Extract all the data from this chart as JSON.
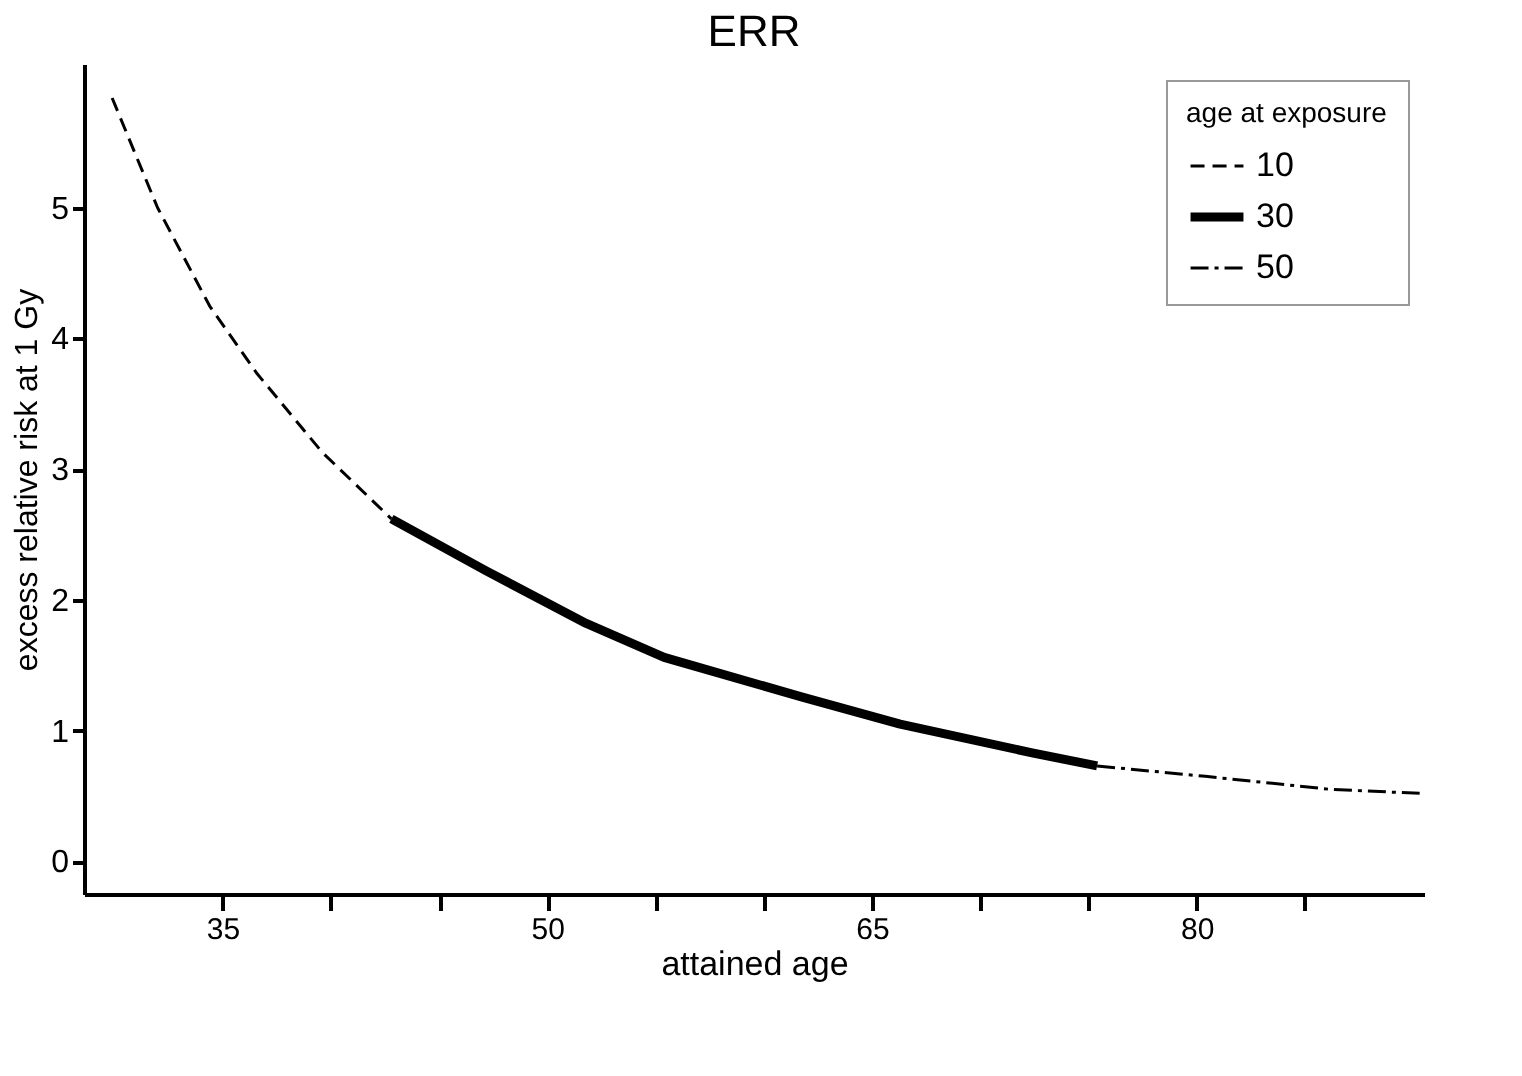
{
  "chart_data": {
    "type": "line",
    "title": "ERR",
    "xlabel": "attained age",
    "ylabel": "excess relative risk at 1 Gy",
    "legend_title": "age at exposure",
    "legend": "top right",
    "grid": false,
    "xlim": [
      28.6,
      90.5
    ],
    "xticks": [
      35,
      {
        "value": 40,
        "label": null
      },
      {
        "value": 45,
        "label": null
      },
      50,
      {
        "value": 55,
        "label": null
      },
      {
        "value": 60,
        "label": null
      },
      65,
      {
        "value": 70,
        "label": null
      },
      {
        "value": 75,
        "label": null
      },
      80,
      {
        "value": 85,
        "label": null
      }
    ],
    "ylim": [
      -0.25,
      6.1
    ],
    "yticks": [
      0,
      1,
      2,
      3,
      4,
      5
    ],
    "series": [
      {
        "name": "10",
        "color": "#000000",
        "line_style": "dashed",
        "x": [
          29.9,
          32,
          34.4,
          36.6,
          39.6,
          42.8
        ],
        "values": [
          5.84,
          5.0,
          4.25,
          3.73,
          3.13,
          2.62
        ]
      },
      {
        "name": "30",
        "color": "#000000",
        "line_style": "solid",
        "x": [
          42.8,
          47.2,
          51.8,
          55.4,
          61.7,
          66.3,
          72.4,
          75.4
        ],
        "values": [
          2.62,
          2.22,
          1.82,
          1.56,
          1.26,
          1.05,
          0.83,
          0.73
        ]
      },
      {
        "name": "50",
        "color": "#000000",
        "line_style": "dashdot",
        "x": [
          75.4,
          80.4,
          86.2,
          90.3
        ],
        "values": [
          0.73,
          0.65,
          0.55,
          0.52
        ]
      }
    ]
  }
}
